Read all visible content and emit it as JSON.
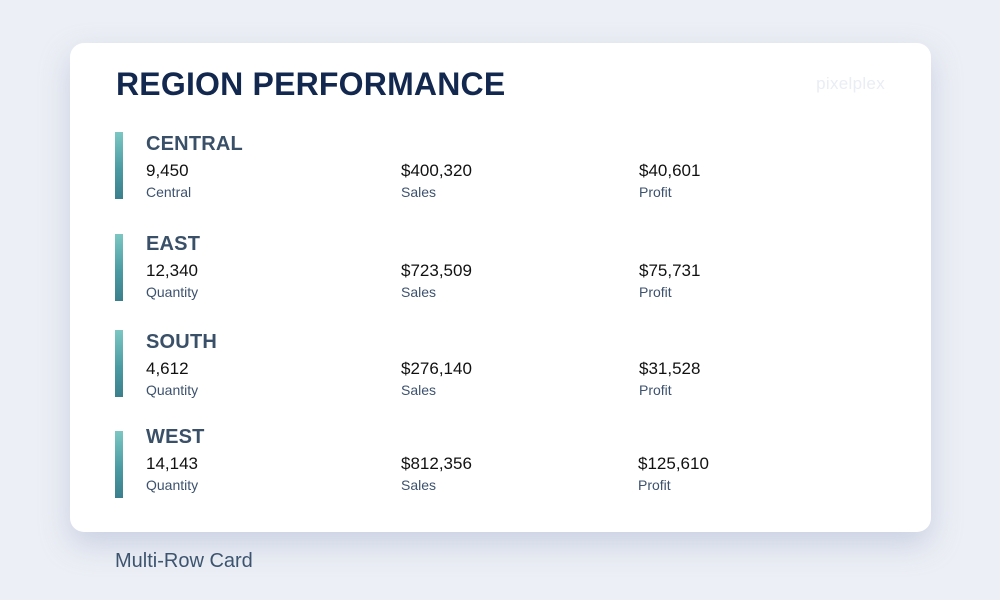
{
  "card": {
    "title": "REGION PERFORMANCE",
    "watermark": "pixelplex"
  },
  "rows": [
    {
      "name": "CENTRAL",
      "metrics": [
        {
          "value": "9,450",
          "label": "Central"
        },
        {
          "value": "$400,320",
          "label": "Sales"
        },
        {
          "value": "$40,601",
          "label": "Profit"
        }
      ]
    },
    {
      "name": "EAST",
      "metrics": [
        {
          "value": "12,340",
          "label": "Quantity"
        },
        {
          "value": "$723,509",
          "label": "Sales"
        },
        {
          "value": "$75,731",
          "label": "Profit"
        }
      ]
    },
    {
      "name": "SOUTH",
      "metrics": [
        {
          "value": "4,612",
          "label": "Quantity"
        },
        {
          "value": "$276,140",
          "label": "Sales"
        },
        {
          "value": "$31,528",
          "label": "Profit"
        }
      ]
    },
    {
      "name": "WEST",
      "metrics": [
        {
          "value": "14,143",
          "label": "Quantity"
        },
        {
          "value": "$812,356",
          "label": "Sales"
        },
        {
          "value": "$125,610",
          "label": "Profit"
        }
      ]
    }
  ],
  "caption": "Multi-Row Card",
  "colors": {
    "background": "#eceff5",
    "card": "#ffffff",
    "title": "#13284f",
    "row_name": "#3a5068",
    "accent_bar_top": "#7cc7c3",
    "accent_bar_bottom": "#3b7f8d"
  }
}
